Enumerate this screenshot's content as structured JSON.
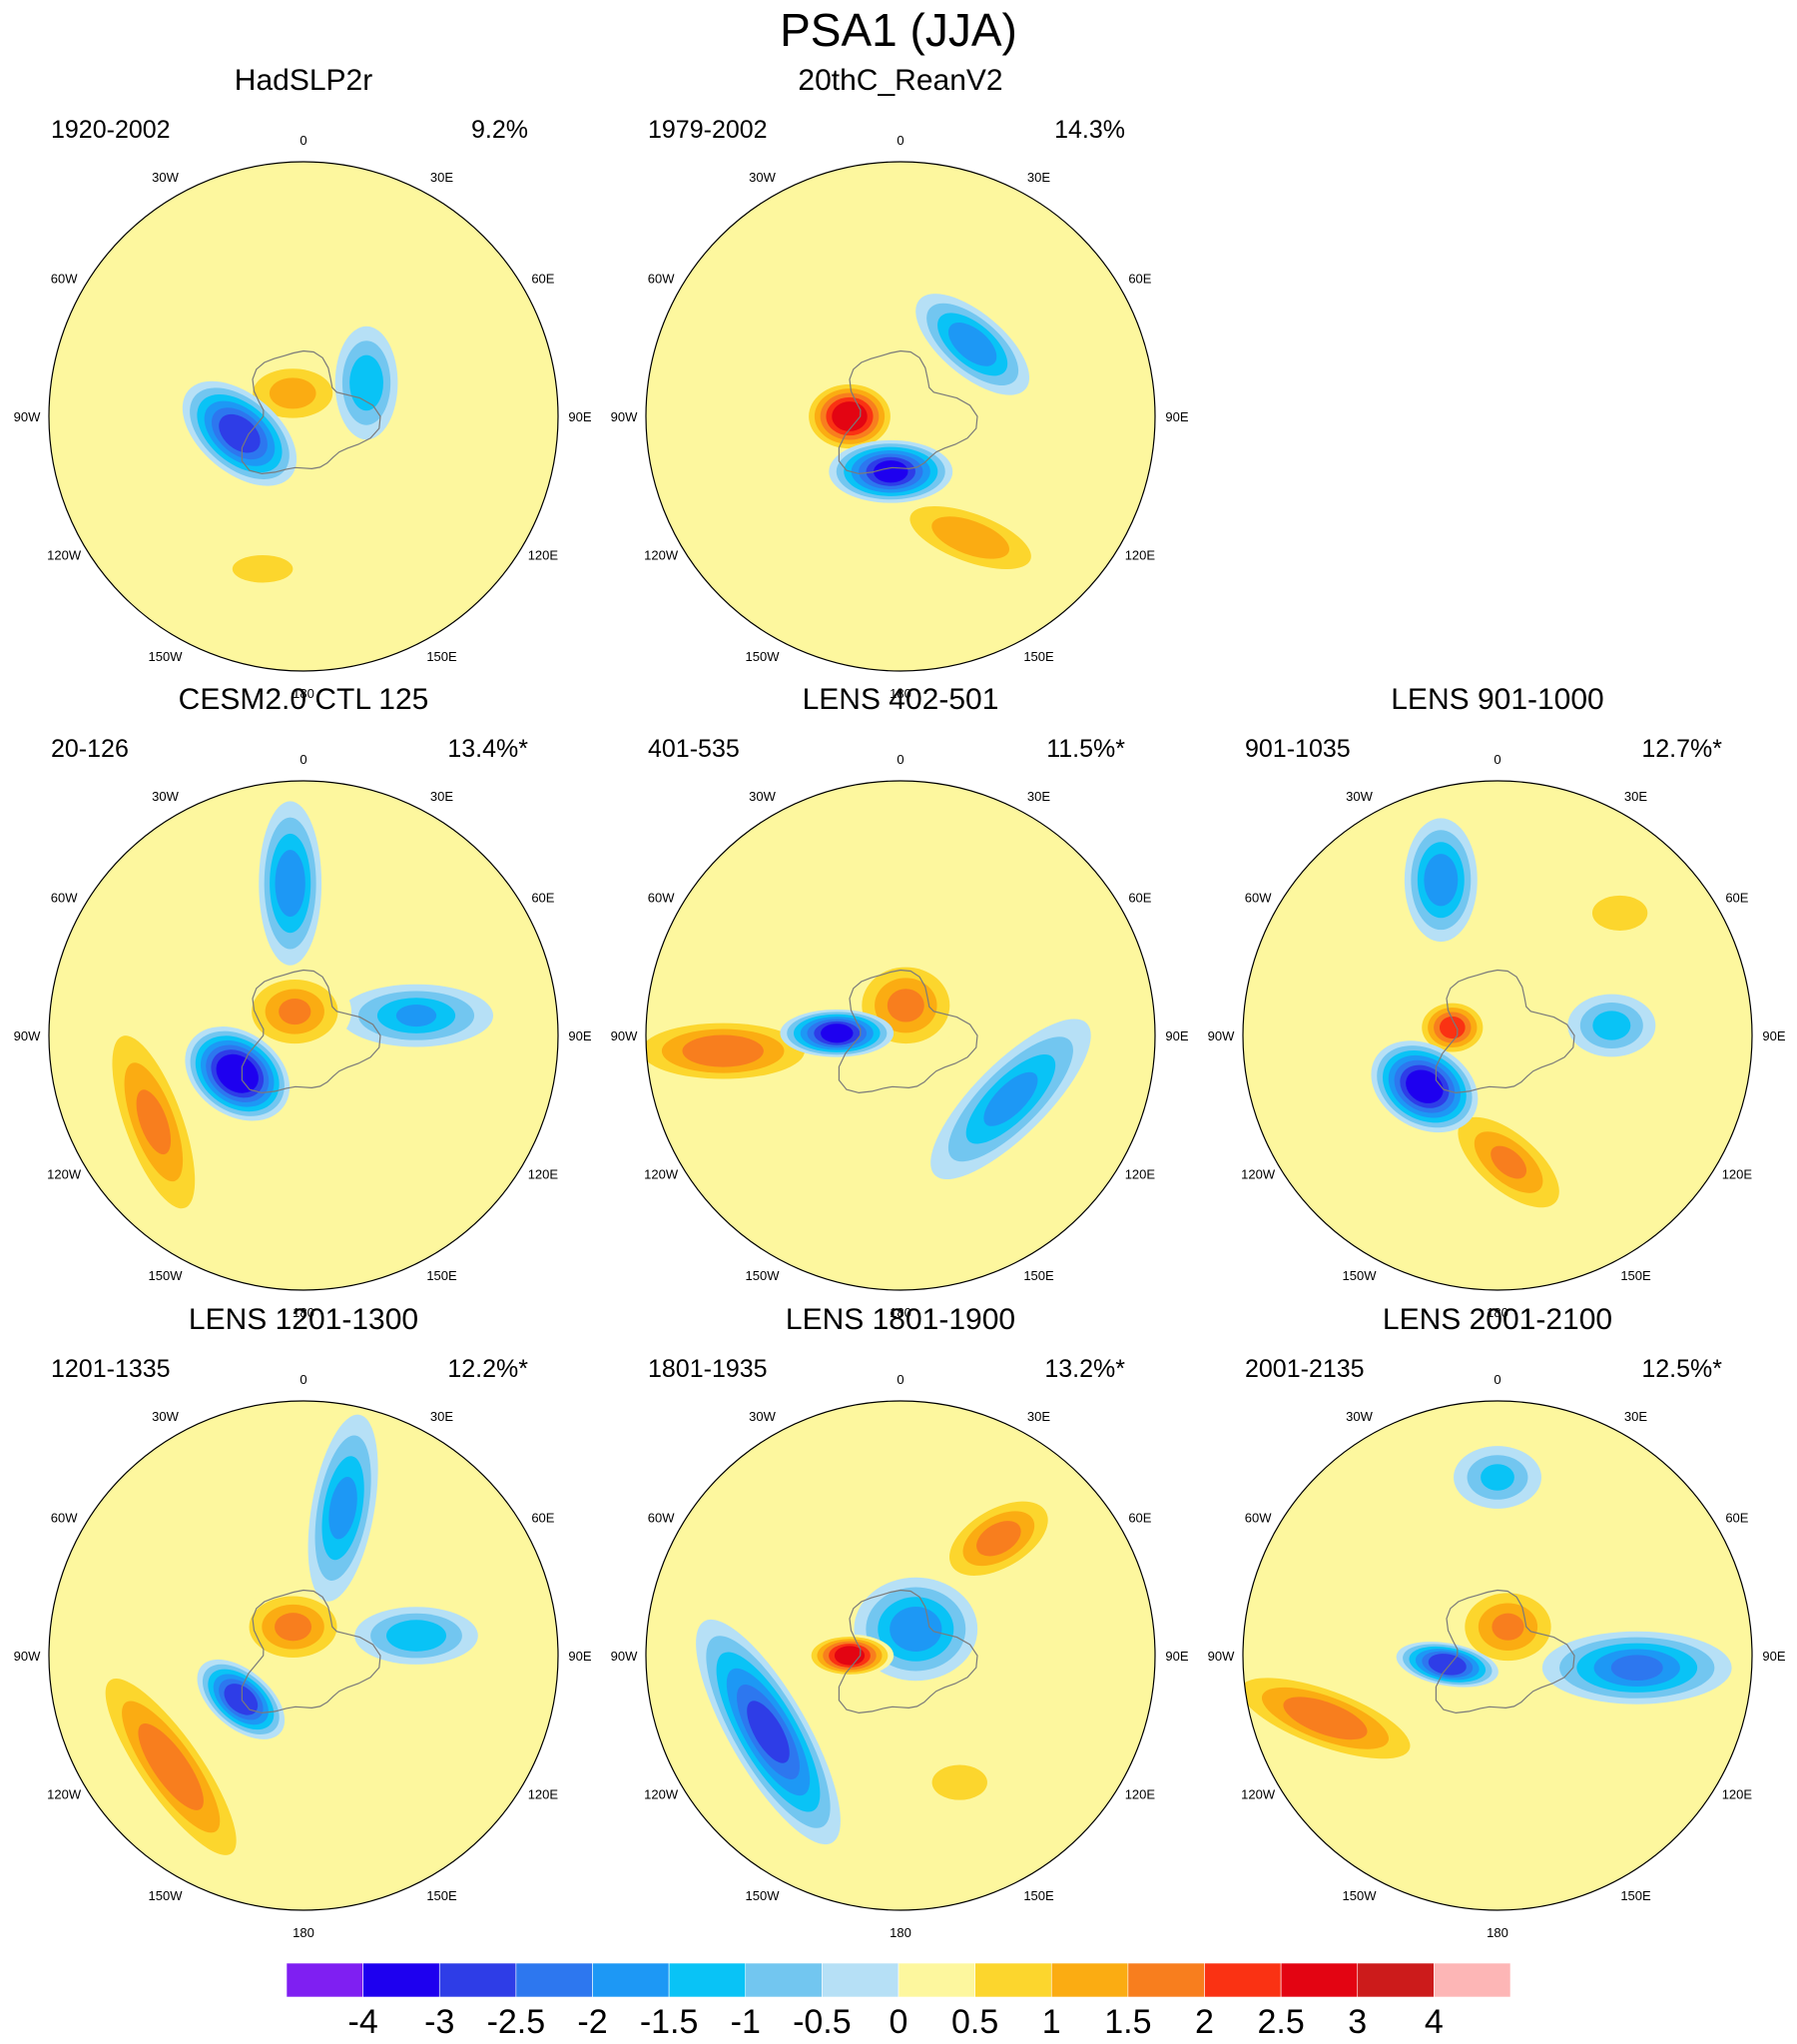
{
  "figure": {
    "title": "PSA1 (JJA)"
  },
  "lon_labels": [
    "0",
    "30E",
    "60E",
    "90E",
    "120E",
    "150E",
    "180",
    "150W",
    "120W",
    "90W",
    "60W",
    "30W"
  ],
  "panels": [
    {
      "title": "HadSLP2r",
      "period": "1920-2002",
      "variance": "9.2%",
      "blobs": [
        {
          "lon": -105,
          "r": 0.26,
          "ext": 0.24,
          "wid": 0.13,
          "val": -3.0,
          "rot": 40
        },
        {
          "lon": 62,
          "r": 0.28,
          "ext": 0.2,
          "wid": 0.1,
          "val": -1.5,
          "rot": 90
        },
        {
          "lon": -25,
          "r": 0.1,
          "ext": 0.2,
          "wid": 0.11,
          "val": 1.3,
          "rot": 0
        },
        {
          "lon": -165,
          "r": 0.62,
          "ext": 0.25,
          "wid": 0.08,
          "val": 0.7,
          "rot": 0
        },
        {
          "lon": 20,
          "r": 0.75,
          "ext": 0.15,
          "wid": 0.06,
          "val": 0.4,
          "rot": 0
        }
      ]
    },
    {
      "title": "20thC_ReanV2",
      "period": "1979-2002",
      "variance": "14.3%",
      "blobs": [
        {
          "lon": -90,
          "r": 0.2,
          "ext": 0.16,
          "wid": 0.12,
          "val": 3.0,
          "rot": 0
        },
        {
          "lon": -170,
          "r": 0.22,
          "ext": 0.22,
          "wid": 0.1,
          "val": -3.2,
          "rot": 0
        },
        {
          "lon": 45,
          "r": 0.4,
          "ext": 0.25,
          "wid": 0.1,
          "val": -2.0,
          "rot": 40
        },
        {
          "lon": 150,
          "r": 0.55,
          "ext": 0.32,
          "wid": 0.1,
          "val": 1.5,
          "rot": 20
        },
        {
          "lon": -10,
          "r": 0.85,
          "ext": 0.12,
          "wid": 0.06,
          "val": 0.3,
          "rot": 0
        }
      ]
    },
    {
      "title": "CESM2.0 CTL 125",
      "period": "20-126",
      "variance": "13.4%*",
      "blobs": [
        {
          "lon": -120,
          "r": 0.3,
          "ext": 0.2,
          "wid": 0.14,
          "val": -3.8,
          "rot": 35
        },
        {
          "lon": -5,
          "r": 0.6,
          "ext": 0.3,
          "wid": 0.1,
          "val": -2.0,
          "rot": 90
        },
        {
          "lon": 80,
          "r": 0.45,
          "ext": 0.28,
          "wid": 0.1,
          "val": -1.6,
          "rot": 0
        },
        {
          "lon": -120,
          "r": 0.68,
          "ext": 0.45,
          "wid": 0.12,
          "val": 1.7,
          "rot": 70
        },
        {
          "lon": -20,
          "r": 0.1,
          "ext": 0.2,
          "wid": 0.14,
          "val": 1.6,
          "rot": 0
        }
      ]
    },
    {
      "title": "LENS 402-501",
      "period": "401-535",
      "variance": "11.5%*",
      "blobs": [
        {
          "lon": -88,
          "r": 0.25,
          "ext": 0.2,
          "wid": 0.07,
          "val": -3.2,
          "rot": 0
        },
        {
          "lon": 10,
          "r": 0.12,
          "ext": 0.2,
          "wid": 0.17,
          "val": 1.7,
          "rot": 0
        },
        {
          "lon": -95,
          "r": 0.7,
          "ext": 0.38,
          "wid": 0.11,
          "val": 2.0,
          "rot": 0
        },
        {
          "lon": 120,
          "r": 0.5,
          "ext": 0.4,
          "wid": 0.12,
          "val": -1.8,
          "rot": -45
        },
        {
          "lon": 30,
          "r": 0.8,
          "ext": 0.2,
          "wid": 0.08,
          "val": 0.3,
          "rot": 0
        }
      ]
    },
    {
      "title": "LENS 901-1000",
      "period": "901-1035",
      "variance": "12.7%*",
      "blobs": [
        {
          "lon": -125,
          "r": 0.35,
          "ext": 0.2,
          "wid": 0.14,
          "val": -3.5,
          "rot": 30
        },
        {
          "lon": -20,
          "r": 0.65,
          "ext": 0.22,
          "wid": 0.12,
          "val": -2.0,
          "rot": 90
        },
        {
          "lon": 85,
          "r": 0.45,
          "ext": 0.15,
          "wid": 0.1,
          "val": -1.3,
          "rot": 0
        },
        {
          "lon": -80,
          "r": 0.18,
          "ext": 0.12,
          "wid": 0.09,
          "val": 2.2,
          "rot": 0
        },
        {
          "lon": 175,
          "r": 0.5,
          "ext": 0.3,
          "wid": 0.12,
          "val": 1.6,
          "rot": 40
        },
        {
          "lon": 45,
          "r": 0.68,
          "ext": 0.15,
          "wid": 0.08,
          "val": 1.0,
          "rot": 0
        }
      ]
    },
    {
      "title": "LENS 1201-1300",
      "period": "1201-1335",
      "variance": "12.2%*",
      "blobs": [
        {
          "lon": -125,
          "r": 0.3,
          "ext": 0.18,
          "wid": 0.09,
          "val": -3.0,
          "rot": 40
        },
        {
          "lon": 15,
          "r": 0.6,
          "ext": 0.35,
          "wid": 0.1,
          "val": -1.8,
          "rot": 100
        },
        {
          "lon": 80,
          "r": 0.45,
          "ext": 0.22,
          "wid": 0.09,
          "val": -1.5,
          "rot": 0
        },
        {
          "lon": -20,
          "r": 0.12,
          "ext": 0.2,
          "wid": 0.13,
          "val": 1.7,
          "rot": 0
        },
        {
          "lon": -130,
          "r": 0.68,
          "ext": 0.5,
          "wid": 0.12,
          "val": 2.0,
          "rot": 55
        }
      ]
    },
    {
      "title": "LENS 1801-1900",
      "period": "1801-1935",
      "variance": "13.2%*",
      "blobs": [
        {
          "lon": -90,
          "r": 0.2,
          "ext": 0.15,
          "wid": 0.06,
          "val": 2.8,
          "rot": 0
        },
        {
          "lon": 30,
          "r": 0.12,
          "ext": 0.22,
          "wid": 0.18,
          "val": -2.0,
          "rot": 0
        },
        {
          "lon": 40,
          "r": 0.6,
          "ext": 0.25,
          "wid": 0.12,
          "val": 1.8,
          "rot": -30
        },
        {
          "lon": -120,
          "r": 0.6,
          "ext": 0.48,
          "wid": 0.13,
          "val": -2.8,
          "rot": 60
        },
        {
          "lon": 155,
          "r": 0.55,
          "ext": 0.15,
          "wid": 0.08,
          "val": 1.0,
          "rot": 0
        }
      ]
    },
    {
      "title": "LENS 2001-2100",
      "period": "2001-2135",
      "variance": "12.5%*",
      "blobs": [
        {
          "lon": -100,
          "r": 0.2,
          "ext": 0.18,
          "wid": 0.06,
          "val": -3.0,
          "rot": 10
        },
        {
          "lon": 20,
          "r": 0.12,
          "ext": 0.2,
          "wid": 0.15,
          "val": 1.6,
          "rot": 0
        },
        {
          "lon": 95,
          "r": 0.55,
          "ext": 0.35,
          "wid": 0.12,
          "val": -2.2,
          "rot": 0
        },
        {
          "lon": -110,
          "r": 0.72,
          "ext": 0.42,
          "wid": 0.11,
          "val": 2.0,
          "rot": 20
        },
        {
          "lon": 0,
          "r": 0.7,
          "ext": 0.15,
          "wid": 0.1,
          "val": -1.2,
          "rot": 0
        }
      ]
    }
  ],
  "colorbar": {
    "labels": [
      "-4",
      "-3",
      "-2.5",
      "-2",
      "-1.5",
      "-1",
      "-0.5",
      "0",
      "0.5",
      "1",
      "1.5",
      "2",
      "2.5",
      "3",
      "4"
    ],
    "colors": [
      "#7f1ff2",
      "#1e00ef",
      "#2e3de7",
      "#2d77ef",
      "#1d98f5",
      "#09c3f6",
      "#72c6f0",
      "#b6e0f6",
      "#fdf79e",
      "#fcd62d",
      "#fbac12",
      "#f87e1e",
      "#fa3213",
      "#e30412",
      "#cc1b1b",
      "#fdb6b6"
    ]
  }
}
